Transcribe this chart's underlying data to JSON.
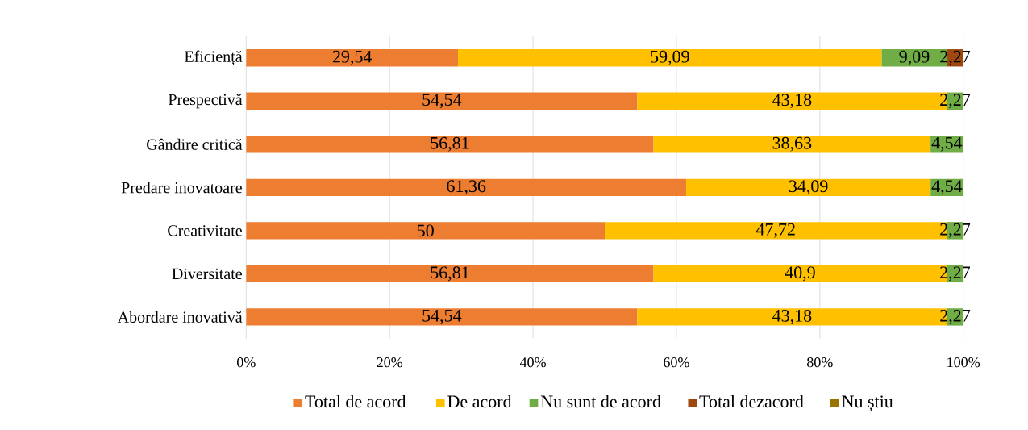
{
  "chart_data": {
    "type": "bar",
    "orientation": "horizontal",
    "stacked": true,
    "categories": [
      "Eficiență",
      "Prespectivă",
      "Gândire critică",
      "Predare inovatoare",
      "Creativitate",
      "Diversitate",
      "Abordare inovativă"
    ],
    "series": [
      {
        "name": "Total de acord",
        "color": "#ed7d31",
        "values": [
          29.54,
          54.54,
          56.81,
          61.36,
          50,
          56.81,
          54.54
        ],
        "value_labels": [
          "29,54",
          "54,54",
          "56,81",
          "61,36",
          "50",
          "56,81",
          "54,54"
        ]
      },
      {
        "name": "De acord",
        "color": "#ffc000",
        "values": [
          59.09,
          43.18,
          38.63,
          34.09,
          47.72,
          40.9,
          43.18
        ],
        "value_labels": [
          "59,09",
          "43,18",
          "38,63",
          "34,09",
          "47,72",
          "40,9",
          "43,18"
        ]
      },
      {
        "name": "Nu sunt de acord",
        "color": "#70ad47",
        "values": [
          9.09,
          2.27,
          4.54,
          4.54,
          2.27,
          2.27,
          2.27
        ],
        "value_labels": [
          "9,09",
          "2,27",
          "4,54",
          "4,54",
          "2,27",
          "2,27",
          "2,27"
        ]
      },
      {
        "name": "Total dezacord",
        "color": "#9e480e",
        "values": [
          2.27,
          null,
          null,
          null,
          null,
          null,
          null
        ],
        "value_labels": [
          "2,27",
          null,
          null,
          null,
          null,
          null,
          null
        ]
      },
      {
        "name": "Nu știu",
        "color": "#997300",
        "values": [
          null,
          null,
          null,
          null,
          null,
          null,
          null
        ]
      }
    ],
    "xlim": [
      0,
      100
    ],
    "xticks": [
      {
        "value": 0,
        "label": "0%"
      },
      {
        "value": 20,
        "label": "20%"
      },
      {
        "value": 40,
        "label": "40%"
      },
      {
        "value": 60,
        "label": "60%"
      },
      {
        "value": 80,
        "label": "80%"
      },
      {
        "value": 100,
        "label": "100%"
      }
    ],
    "grid": "x",
    "legend": "bottom"
  }
}
